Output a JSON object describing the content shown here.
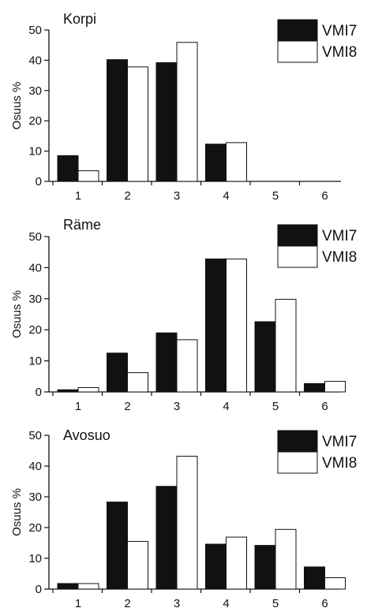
{
  "chart_data": [
    {
      "type": "bar",
      "title": "Korpi",
      "ylabel": "Osuus %",
      "xlabel": "",
      "categories": [
        "1",
        "2",
        "3",
        "4",
        "5",
        "6"
      ],
      "ylim": [
        0,
        50
      ],
      "yticks": [
        0,
        10,
        20,
        30,
        40,
        50
      ],
      "grid": false,
      "legend": "top-right",
      "series": [
        {
          "name": "VMI7",
          "color": "#111111",
          "values": [
            8.5,
            40.2,
            39.2,
            12.3,
            0,
            0
          ]
        },
        {
          "name": "VMI8",
          "color": "#ffffff",
          "values": [
            3.5,
            37.8,
            45.9,
            12.8,
            0,
            0
          ]
        }
      ]
    },
    {
      "type": "bar",
      "title": "Räme",
      "ylabel": "Osuus %",
      "xlabel": "",
      "categories": [
        "1",
        "2",
        "3",
        "4",
        "5",
        "6"
      ],
      "ylim": [
        0,
        50
      ],
      "yticks": [
        0,
        10,
        20,
        30,
        40,
        50
      ],
      "grid": false,
      "legend": "top-right",
      "series": [
        {
          "name": "VMI7",
          "color": "#111111",
          "values": [
            0.7,
            12.5,
            19.0,
            42.8,
            22.6,
            2.7
          ]
        },
        {
          "name": "VMI8",
          "color": "#ffffff",
          "values": [
            1.4,
            6.2,
            16.8,
            42.8,
            29.8,
            3.4
          ]
        }
      ]
    },
    {
      "type": "bar",
      "title": "Avosuo",
      "ylabel": "Osuus %",
      "xlabel": "",
      "categories": [
        "1",
        "2",
        "3",
        "4",
        "5",
        "6"
      ],
      "ylim": [
        0,
        50
      ],
      "yticks": [
        0,
        10,
        20,
        30,
        40,
        50
      ],
      "grid": false,
      "legend": "top-right",
      "series": [
        {
          "name": "VMI7",
          "color": "#111111",
          "values": [
            1.8,
            28.3,
            33.4,
            14.6,
            14.2,
            7.2
          ]
        },
        {
          "name": "VMI8",
          "color": "#ffffff",
          "values": [
            1.8,
            15.5,
            43.2,
            16.9,
            19.4,
            3.7
          ]
        }
      ]
    }
  ]
}
